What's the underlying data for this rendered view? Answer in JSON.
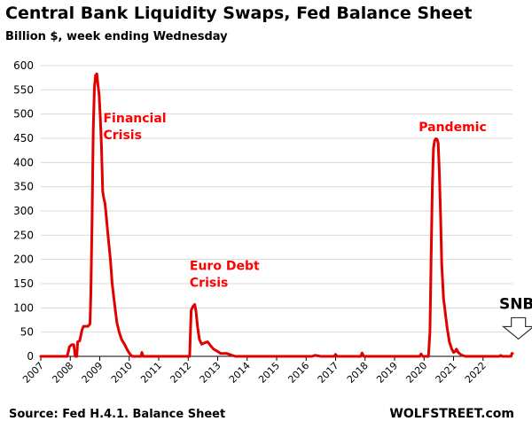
{
  "header": {
    "title": "Central Bank Liquidity Swaps, Fed Balance Sheet",
    "subtitle": "Billion $, week ending Wednesday"
  },
  "footer": {
    "source": "Source: Fed H.4.1. Balance Sheet",
    "brand": "WOLFSTREET.com"
  },
  "colors": {
    "line": "#e00000",
    "annotation": "#ff0000",
    "grid": "#d9d9d9",
    "axis": "#000000"
  },
  "chart_data": {
    "type": "line",
    "title": "Central Bank Liquidity Swaps, Fed Balance Sheet",
    "subtitle": "Billion $, week ending Wednesday",
    "xlabel": "",
    "ylabel": "",
    "xlim": [
      2007,
      2023
    ],
    "ylim": [
      0,
      600
    ],
    "grid": true,
    "x_ticks": [
      "2007",
      "2008",
      "2009",
      "2010",
      "2011",
      "2012",
      "2013",
      "2014",
      "2015",
      "2016",
      "2017",
      "2018",
      "2019",
      "2020",
      "2021",
      "2022"
    ],
    "y_ticks": [
      0,
      50,
      100,
      150,
      200,
      250,
      300,
      350,
      400,
      450,
      500,
      550,
      600
    ],
    "series": [
      {
        "points": [
          [
            2007.0,
            0
          ],
          [
            2007.9,
            0
          ],
          [
            2007.97,
            20
          ],
          [
            2008.05,
            24
          ],
          [
            2008.12,
            24
          ],
          [
            2008.17,
            0
          ],
          [
            2008.22,
            0
          ],
          [
            2008.25,
            30
          ],
          [
            2008.32,
            32
          ],
          [
            2008.4,
            55
          ],
          [
            2008.45,
            62
          ],
          [
            2008.6,
            62
          ],
          [
            2008.67,
            67
          ],
          [
            2008.7,
            130
          ],
          [
            2008.74,
            290
          ],
          [
            2008.78,
            470
          ],
          [
            2008.82,
            555
          ],
          [
            2008.86,
            580
          ],
          [
            2008.9,
            583
          ],
          [
            2008.94,
            560
          ],
          [
            2008.98,
            540
          ],
          [
            2009.02,
            490
          ],
          [
            2009.06,
            430
          ],
          [
            2009.1,
            340
          ],
          [
            2009.14,
            325
          ],
          [
            2009.18,
            315
          ],
          [
            2009.22,
            290
          ],
          [
            2009.28,
            250
          ],
          [
            2009.36,
            200
          ],
          [
            2009.42,
            150
          ],
          [
            2009.5,
            110
          ],
          [
            2009.58,
            70
          ],
          [
            2009.66,
            50
          ],
          [
            2009.74,
            35
          ],
          [
            2009.84,
            25
          ],
          [
            2009.92,
            15
          ],
          [
            2010.02,
            5
          ],
          [
            2010.1,
            0
          ],
          [
            2010.4,
            0
          ],
          [
            2010.43,
            8
          ],
          [
            2010.47,
            0
          ],
          [
            2012.0,
            0
          ],
          [
            2012.05,
            0
          ],
          [
            2012.07,
            40
          ],
          [
            2012.1,
            95
          ],
          [
            2012.16,
            103
          ],
          [
            2012.22,
            107
          ],
          [
            2012.26,
            95
          ],
          [
            2012.32,
            60
          ],
          [
            2012.38,
            35
          ],
          [
            2012.46,
            25
          ],
          [
            2012.56,
            28
          ],
          [
            2012.66,
            30
          ],
          [
            2012.76,
            22
          ],
          [
            2012.86,
            15
          ],
          [
            2013.0,
            10
          ],
          [
            2013.1,
            6
          ],
          [
            2013.3,
            6
          ],
          [
            2013.45,
            3
          ],
          [
            2013.6,
            0
          ],
          [
            2016.2,
            0
          ],
          [
            2016.3,
            2
          ],
          [
            2016.5,
            0
          ],
          [
            2016.95,
            0
          ],
          [
            2017.0,
            4
          ],
          [
            2017.05,
            0
          ],
          [
            2017.85,
            0
          ],
          [
            2017.9,
            7
          ],
          [
            2017.95,
            0
          ],
          [
            2019.85,
            0
          ],
          [
            2019.9,
            5
          ],
          [
            2019.95,
            0
          ],
          [
            2020.15,
            0
          ],
          [
            2020.2,
            50
          ],
          [
            2020.24,
            200
          ],
          [
            2020.28,
            350
          ],
          [
            2020.32,
            430
          ],
          [
            2020.36,
            445
          ],
          [
            2020.4,
            449
          ],
          [
            2020.44,
            448
          ],
          [
            2020.48,
            440
          ],
          [
            2020.52,
            380
          ],
          [
            2020.56,
            290
          ],
          [
            2020.6,
            190
          ],
          [
            2020.66,
            120
          ],
          [
            2020.72,
            90
          ],
          [
            2020.78,
            60
          ],
          [
            2020.86,
            30
          ],
          [
            2020.94,
            15
          ],
          [
            2021.0,
            8
          ],
          [
            2021.06,
            10
          ],
          [
            2021.1,
            15
          ],
          [
            2021.16,
            8
          ],
          [
            2021.26,
            3
          ],
          [
            2021.4,
            0
          ],
          [
            2022.55,
            0
          ],
          [
            2022.6,
            2
          ],
          [
            2022.65,
            0
          ],
          [
            2022.95,
            0
          ],
          [
            2022.98,
            6
          ],
          [
            2023.0,
            6
          ]
        ]
      }
    ],
    "annotations": [
      {
        "lines": [
          "Financial",
          "Crisis"
        ],
        "x": 2009.12,
        "y": 483
      },
      {
        "lines": [
          "Euro Debt",
          "Crisis"
        ],
        "x": 2012.05,
        "y": 178
      },
      {
        "lines": [
          "Pandemic"
        ],
        "x": 2019.82,
        "y": 465
      },
      {
        "lines": [
          "SNB"
        ],
        "x": 2022.9,
        "y": 98,
        "style": "arrow"
      }
    ]
  }
}
